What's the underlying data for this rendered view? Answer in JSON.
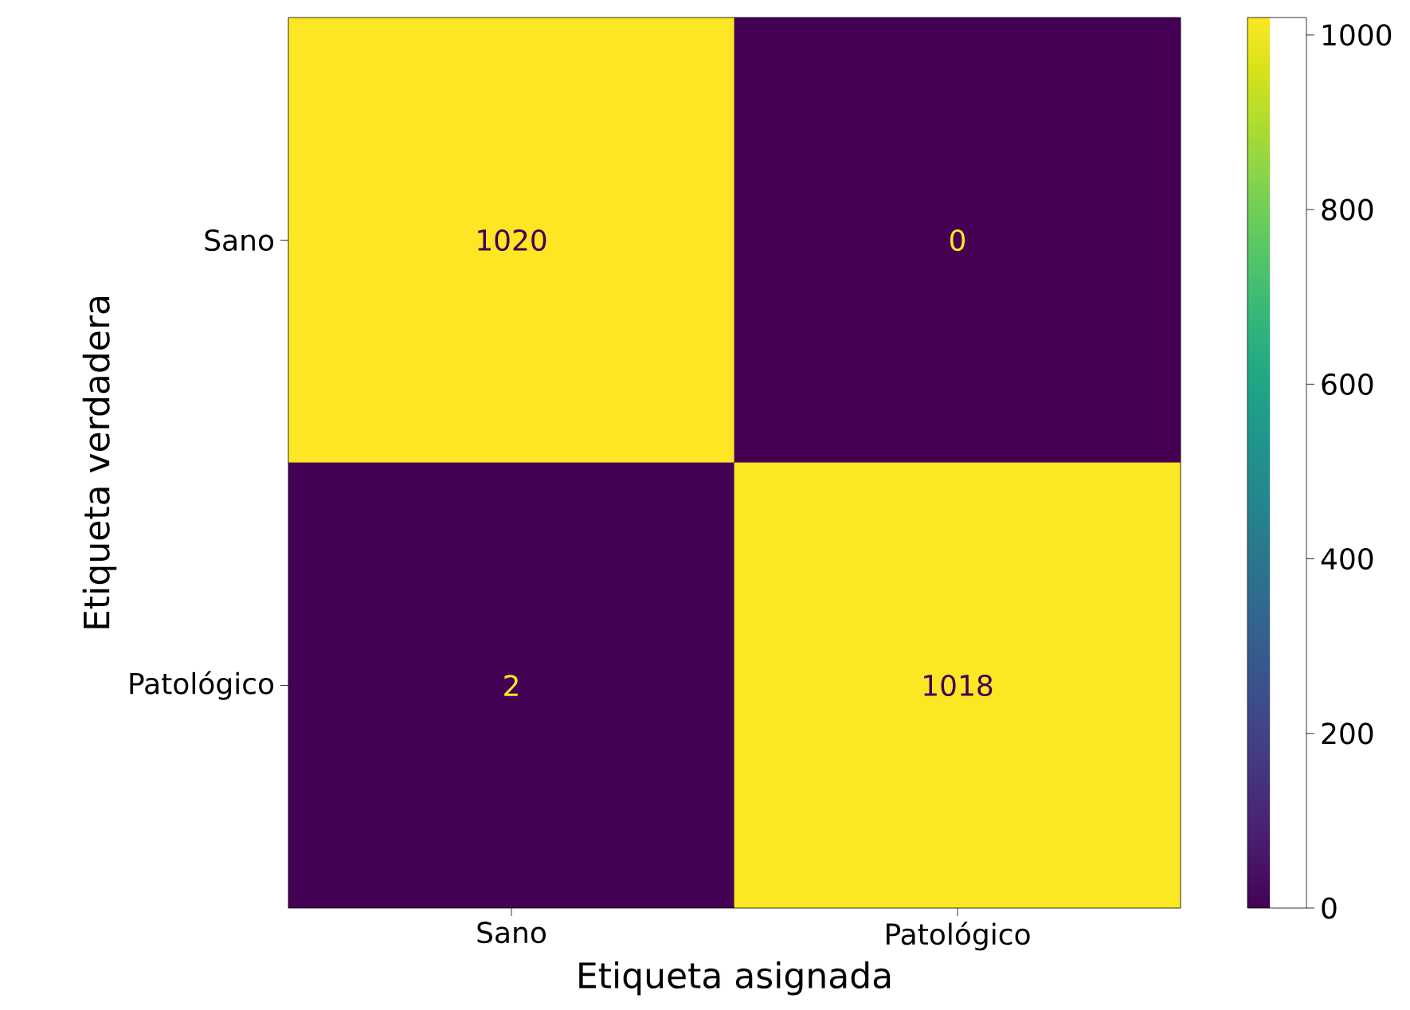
{
  "chart_data": {
    "type": "heatmap",
    "xlabel": "Etiqueta asignada",
    "ylabel": "Etiqueta verdadera",
    "categories": [
      "Sano",
      "Patológico"
    ],
    "y_categories": [
      "Sano",
      "Patológico"
    ],
    "cells": [
      [
        1020,
        0
      ],
      [
        2,
        1018
      ]
    ],
    "data_labels": true,
    "clim": [
      0,
      1020
    ],
    "cticks": [
      0,
      200,
      400,
      600,
      800,
      1000
    ]
  }
}
